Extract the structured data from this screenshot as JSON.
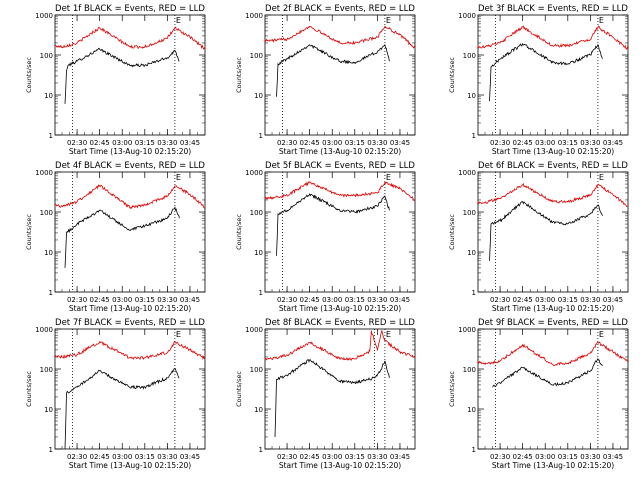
{
  "chart_data": [
    {
      "type": "line",
      "title": "Det 1f BLACK = Events, RED = LLD",
      "xlabel": "Start Time (13-Aug-10 02:15:20)",
      "ylabel": "Counts/sec",
      "yscale": "log",
      "ylim": [
        1,
        1000
      ],
      "xlim": [
        "02:15:20",
        "03:55:00"
      ],
      "x_ticks": [
        "02:30",
        "02:45",
        "03:00",
        "03:15",
        "03:30",
        "03:45"
      ],
      "y_ticks": [
        "1",
        "10",
        "100",
        "1000"
      ],
      "grid": false,
      "annotation": "E",
      "marker_times": [
        "02:27",
        "03:35"
      ],
      "series": [
        {
          "name": "Events",
          "color": "#000000",
          "x": [
            "02:22",
            "02:23",
            "02:24",
            "02:30",
            "02:45",
            "03:05",
            "03:15",
            "03:30",
            "03:35",
            "03:38"
          ],
          "y": [
            6,
            40,
            55,
            70,
            140,
            55,
            55,
            85,
            130,
            70
          ]
        },
        {
          "name": "LLD",
          "color": "#e00000",
          "x": [
            "02:15",
            "02:20",
            "02:30",
            "02:45",
            "03:05",
            "03:15",
            "03:30",
            "03:35",
            "03:45",
            "03:55"
          ],
          "y": [
            170,
            160,
            200,
            480,
            160,
            160,
            260,
            480,
            280,
            140
          ]
        }
      ]
    },
    {
      "type": "line",
      "title": "Det 2f BLACK = Events, RED = LLD",
      "xlabel": "Start Time (13-Aug-10 02:15:20)",
      "ylabel": "Counts/sec",
      "yscale": "log",
      "ylim": [
        1,
        1000
      ],
      "xlim": [
        "02:15:20",
        "03:55:00"
      ],
      "x_ticks": [
        "02:30",
        "02:45",
        "03:00",
        "03:15",
        "03:30",
        "03:45"
      ],
      "y_ticks": [
        "1",
        "10",
        "100",
        "1000"
      ],
      "grid": false,
      "annotation": "E",
      "marker_times": [
        "02:27",
        "03:35"
      ],
      "series": [
        {
          "name": "Events",
          "color": "#000000",
          "x": [
            "02:23",
            "02:24",
            "02:30",
            "02:45",
            "03:05",
            "03:15",
            "03:30",
            "03:35",
            "03:38"
          ],
          "y": [
            9,
            60,
            80,
            180,
            70,
            65,
            120,
            180,
            70
          ]
        },
        {
          "name": "LLD",
          "color": "#e00000",
          "x": [
            "02:15",
            "02:20",
            "02:30",
            "02:45",
            "03:05",
            "03:15",
            "03:30",
            "03:35",
            "03:45",
            "03:55"
          ],
          "y": [
            230,
            230,
            250,
            520,
            200,
            200,
            280,
            520,
            320,
            150
          ]
        }
      ]
    },
    {
      "type": "line",
      "title": "Det 3f BLACK = Events, RED = LLD",
      "xlabel": "Start Time (13-Aug-10 02:15:20)",
      "ylabel": "Counts/sec",
      "yscale": "log",
      "ylim": [
        1,
        1000
      ],
      "xlim": [
        "02:15:20",
        "03:55:00"
      ],
      "x_ticks": [
        "02:30",
        "02:45",
        "03:00",
        "03:15",
        "03:30",
        "03:45"
      ],
      "y_ticks": [
        "1",
        "10",
        "100",
        "1000"
      ],
      "grid": false,
      "annotation": "E",
      "marker_times": [
        "02:27",
        "03:35"
      ],
      "series": [
        {
          "name": "Events",
          "color": "#000000",
          "x": [
            "02:23",
            "02:24",
            "02:30",
            "02:45",
            "03:05",
            "03:15",
            "03:30",
            "03:35",
            "03:38"
          ],
          "y": [
            7,
            50,
            80,
            190,
            65,
            60,
            100,
            180,
            80
          ]
        },
        {
          "name": "LLD",
          "color": "#e00000",
          "x": [
            "02:15",
            "02:20",
            "02:30",
            "02:45",
            "03:05",
            "03:15",
            "03:30",
            "03:35",
            "03:45",
            "03:55"
          ],
          "y": [
            160,
            160,
            200,
            500,
            170,
            170,
            250,
            500,
            280,
            140
          ]
        }
      ]
    },
    {
      "type": "line",
      "title": "Det 4f BLACK = Events, RED = LLD",
      "xlabel": "Start Time (13-Aug-10 02:15:20)",
      "ylabel": "Counts/sec",
      "yscale": "log",
      "ylim": [
        1,
        1000
      ],
      "xlim": [
        "02:15:20",
        "03:55:00"
      ],
      "x_ticks": [
        "02:30",
        "02:45",
        "03:00",
        "03:15",
        "03:30",
        "03:45"
      ],
      "y_ticks": [
        "1",
        "10",
        "100",
        "1000"
      ],
      "grid": false,
      "annotation": "E",
      "marker_times": [
        "02:27",
        "03:35"
      ],
      "series": [
        {
          "name": "Events",
          "color": "#000000",
          "x": [
            "02:22",
            "02:23",
            "02:30",
            "02:45",
            "03:05",
            "03:15",
            "03:30",
            "03:35",
            "03:38"
          ],
          "y": [
            4,
            30,
            50,
            110,
            35,
            45,
            70,
            130,
            70
          ]
        },
        {
          "name": "LLD",
          "color": "#e00000",
          "x": [
            "02:15",
            "02:20",
            "02:30",
            "02:45",
            "03:05",
            "03:15",
            "03:30",
            "03:35",
            "03:45",
            "03:55"
          ],
          "y": [
            150,
            140,
            180,
            460,
            130,
            150,
            250,
            450,
            280,
            130
          ]
        }
      ]
    },
    {
      "type": "line",
      "title": "Det 5f BLACK = Events, RED = LLD",
      "xlabel": "Start Time (13-Aug-10 02:15:20)",
      "ylabel": "Counts/sec",
      "yscale": "log",
      "ylim": [
        1,
        1000
      ],
      "xlim": [
        "02:15:20",
        "03:55:00"
      ],
      "x_ticks": [
        "02:30",
        "02:45",
        "03:00",
        "03:15",
        "03:30",
        "03:45"
      ],
      "y_ticks": [
        "1",
        "10",
        "100",
        "1000"
      ],
      "grid": false,
      "annotation": "E",
      "marker_times": [
        "02:27",
        "03:35"
      ],
      "series": [
        {
          "name": "Events",
          "color": "#000000",
          "x": [
            "02:23",
            "02:24",
            "02:30",
            "02:45",
            "03:05",
            "03:15",
            "03:30",
            "03:35",
            "03:38"
          ],
          "y": [
            8,
            90,
            110,
            280,
            110,
            100,
            140,
            250,
            110
          ]
        },
        {
          "name": "LLD",
          "color": "#e00000",
          "x": [
            "02:15",
            "02:20",
            "02:30",
            "02:45",
            "03:05",
            "03:15",
            "03:30",
            "03:35",
            "03:45",
            "03:55"
          ],
          "y": [
            230,
            230,
            260,
            550,
            260,
            260,
            300,
            560,
            380,
            200
          ]
        }
      ]
    },
    {
      "type": "line",
      "title": "Det 6f BLACK = Events, RED = LLD",
      "xlabel": "Start Time (13-Aug-10 02:15:20)",
      "ylabel": "Counts/sec",
      "yscale": "log",
      "ylim": [
        1,
        1000
      ],
      "xlim": [
        "02:15:20",
        "03:55:00"
      ],
      "x_ticks": [
        "02:30",
        "02:45",
        "03:00",
        "03:15",
        "03:30",
        "03:45"
      ],
      "y_ticks": [
        "1",
        "10",
        "100",
        "1000"
      ],
      "grid": false,
      "annotation": "E",
      "marker_times": [
        "02:27",
        "03:35"
      ],
      "series": [
        {
          "name": "Events",
          "color": "#000000",
          "x": [
            "02:23",
            "02:24",
            "02:30",
            "02:45",
            "03:05",
            "03:15",
            "03:30",
            "03:35",
            "03:38"
          ],
          "y": [
            6,
            50,
            60,
            180,
            55,
            50,
            90,
            150,
            80
          ]
        },
        {
          "name": "LLD",
          "color": "#e00000",
          "x": [
            "02:15",
            "02:20",
            "02:30",
            "02:45",
            "03:05",
            "03:15",
            "03:30",
            "03:35",
            "03:45",
            "03:55"
          ],
          "y": [
            170,
            170,
            220,
            480,
            180,
            180,
            260,
            490,
            270,
            140
          ]
        }
      ]
    },
    {
      "type": "line",
      "title": "Det 7f BLACK = Events, RED = LLD",
      "xlabel": "Start Time (13-Aug-10 02:15:20)",
      "ylabel": "Counts/sec",
      "yscale": "log",
      "ylim": [
        1,
        1000
      ],
      "xlim": [
        "02:15:20",
        "03:55:00"
      ],
      "x_ticks": [
        "02:30",
        "02:45",
        "03:00",
        "03:15",
        "03:30",
        "03:45"
      ],
      "y_ticks": [
        "1",
        "10",
        "100",
        "1000"
      ],
      "grid": false,
      "annotation": "E",
      "marker_times": [
        "02:27",
        "03:35"
      ],
      "series": [
        {
          "name": "Events",
          "color": "#000000",
          "x": [
            "02:22",
            "02:23",
            "02:30",
            "02:45",
            "03:05",
            "03:15",
            "03:30",
            "03:35",
            "03:38"
          ],
          "y": [
            1,
            25,
            35,
            90,
            35,
            35,
            60,
            100,
            60
          ]
        },
        {
          "name": "LLD",
          "color": "#e00000",
          "x": [
            "02:15",
            "02:20",
            "02:30",
            "02:45",
            "03:05",
            "03:15",
            "03:30",
            "03:35",
            "03:45",
            "03:55"
          ],
          "y": [
            200,
            200,
            230,
            480,
            190,
            190,
            260,
            470,
            300,
            180
          ]
        }
      ]
    },
    {
      "type": "line",
      "title": "Det 8f BLACK = Events, RED = LLD",
      "xlabel": "Start Time (13-Aug-10 02:15:20)",
      "ylabel": "Counts/sec",
      "yscale": "log",
      "ylim": [
        1,
        1000
      ],
      "xlim": [
        "02:15:20",
        "03:55:00"
      ],
      "x_ticks": [
        "02:30",
        "02:45",
        "03:00",
        "03:15",
        "03:30",
        "03:45"
      ],
      "y_ticks": [
        "1",
        "10",
        "100",
        "1000"
      ],
      "grid": false,
      "annotation": "E",
      "marker_times": [
        "03:28",
        "03:35"
      ],
      "series": [
        {
          "name": "Events",
          "color": "#000000",
          "x": [
            "02:22",
            "02:23",
            "02:30",
            "02:45",
            "03:05",
            "03:15",
            "03:28",
            "03:32",
            "03:35",
            "03:38"
          ],
          "y": [
            2,
            55,
            70,
            170,
            50,
            45,
            60,
            90,
            160,
            60
          ]
        },
        {
          "name": "LLD",
          "color": "#e00000",
          "x": [
            "02:15",
            "02:20",
            "02:30",
            "02:45",
            "03:05",
            "03:15",
            "03:25",
            "03:26",
            "03:30",
            "03:33",
            "03:35",
            "03:45",
            "03:55"
          ],
          "y": [
            180,
            180,
            220,
            460,
            180,
            180,
            280,
            900,
            300,
            900,
            500,
            270,
            200
          ]
        }
      ]
    },
    {
      "type": "line",
      "title": "Det 9f BLACK = Events, RED = LLD",
      "xlabel": "Start Time (13-Aug-10 02:15:20)",
      "ylabel": "Counts/sec",
      "yscale": "log",
      "ylim": [
        1,
        1000
      ],
      "xlim": [
        "02:15:20",
        "03:55:00"
      ],
      "x_ticks": [
        "02:30",
        "02:45",
        "03:00",
        "03:15",
        "03:30",
        "03:45"
      ],
      "y_ticks": [
        "1",
        "10",
        "100",
        "1000"
      ],
      "grid": false,
      "annotation": "E",
      "marker_times": [
        "02:27",
        "03:35"
      ],
      "series": [
        {
          "name": "Events",
          "color": "#000000",
          "x": [
            "02:25",
            "02:30",
            "02:45",
            "03:05",
            "03:15",
            "03:30",
            "03:35",
            "03:38"
          ],
          "y": [
            35,
            45,
            110,
            40,
            45,
            90,
            180,
            120
          ]
        },
        {
          "name": "LLD",
          "color": "#e00000",
          "x": [
            "02:15",
            "02:20",
            "02:30",
            "02:45",
            "03:05",
            "03:15",
            "03:30",
            "03:35",
            "03:45",
            "03:55"
          ],
          "y": [
            150,
            130,
            160,
            400,
            130,
            140,
            250,
            460,
            270,
            150
          ]
        }
      ]
    }
  ]
}
